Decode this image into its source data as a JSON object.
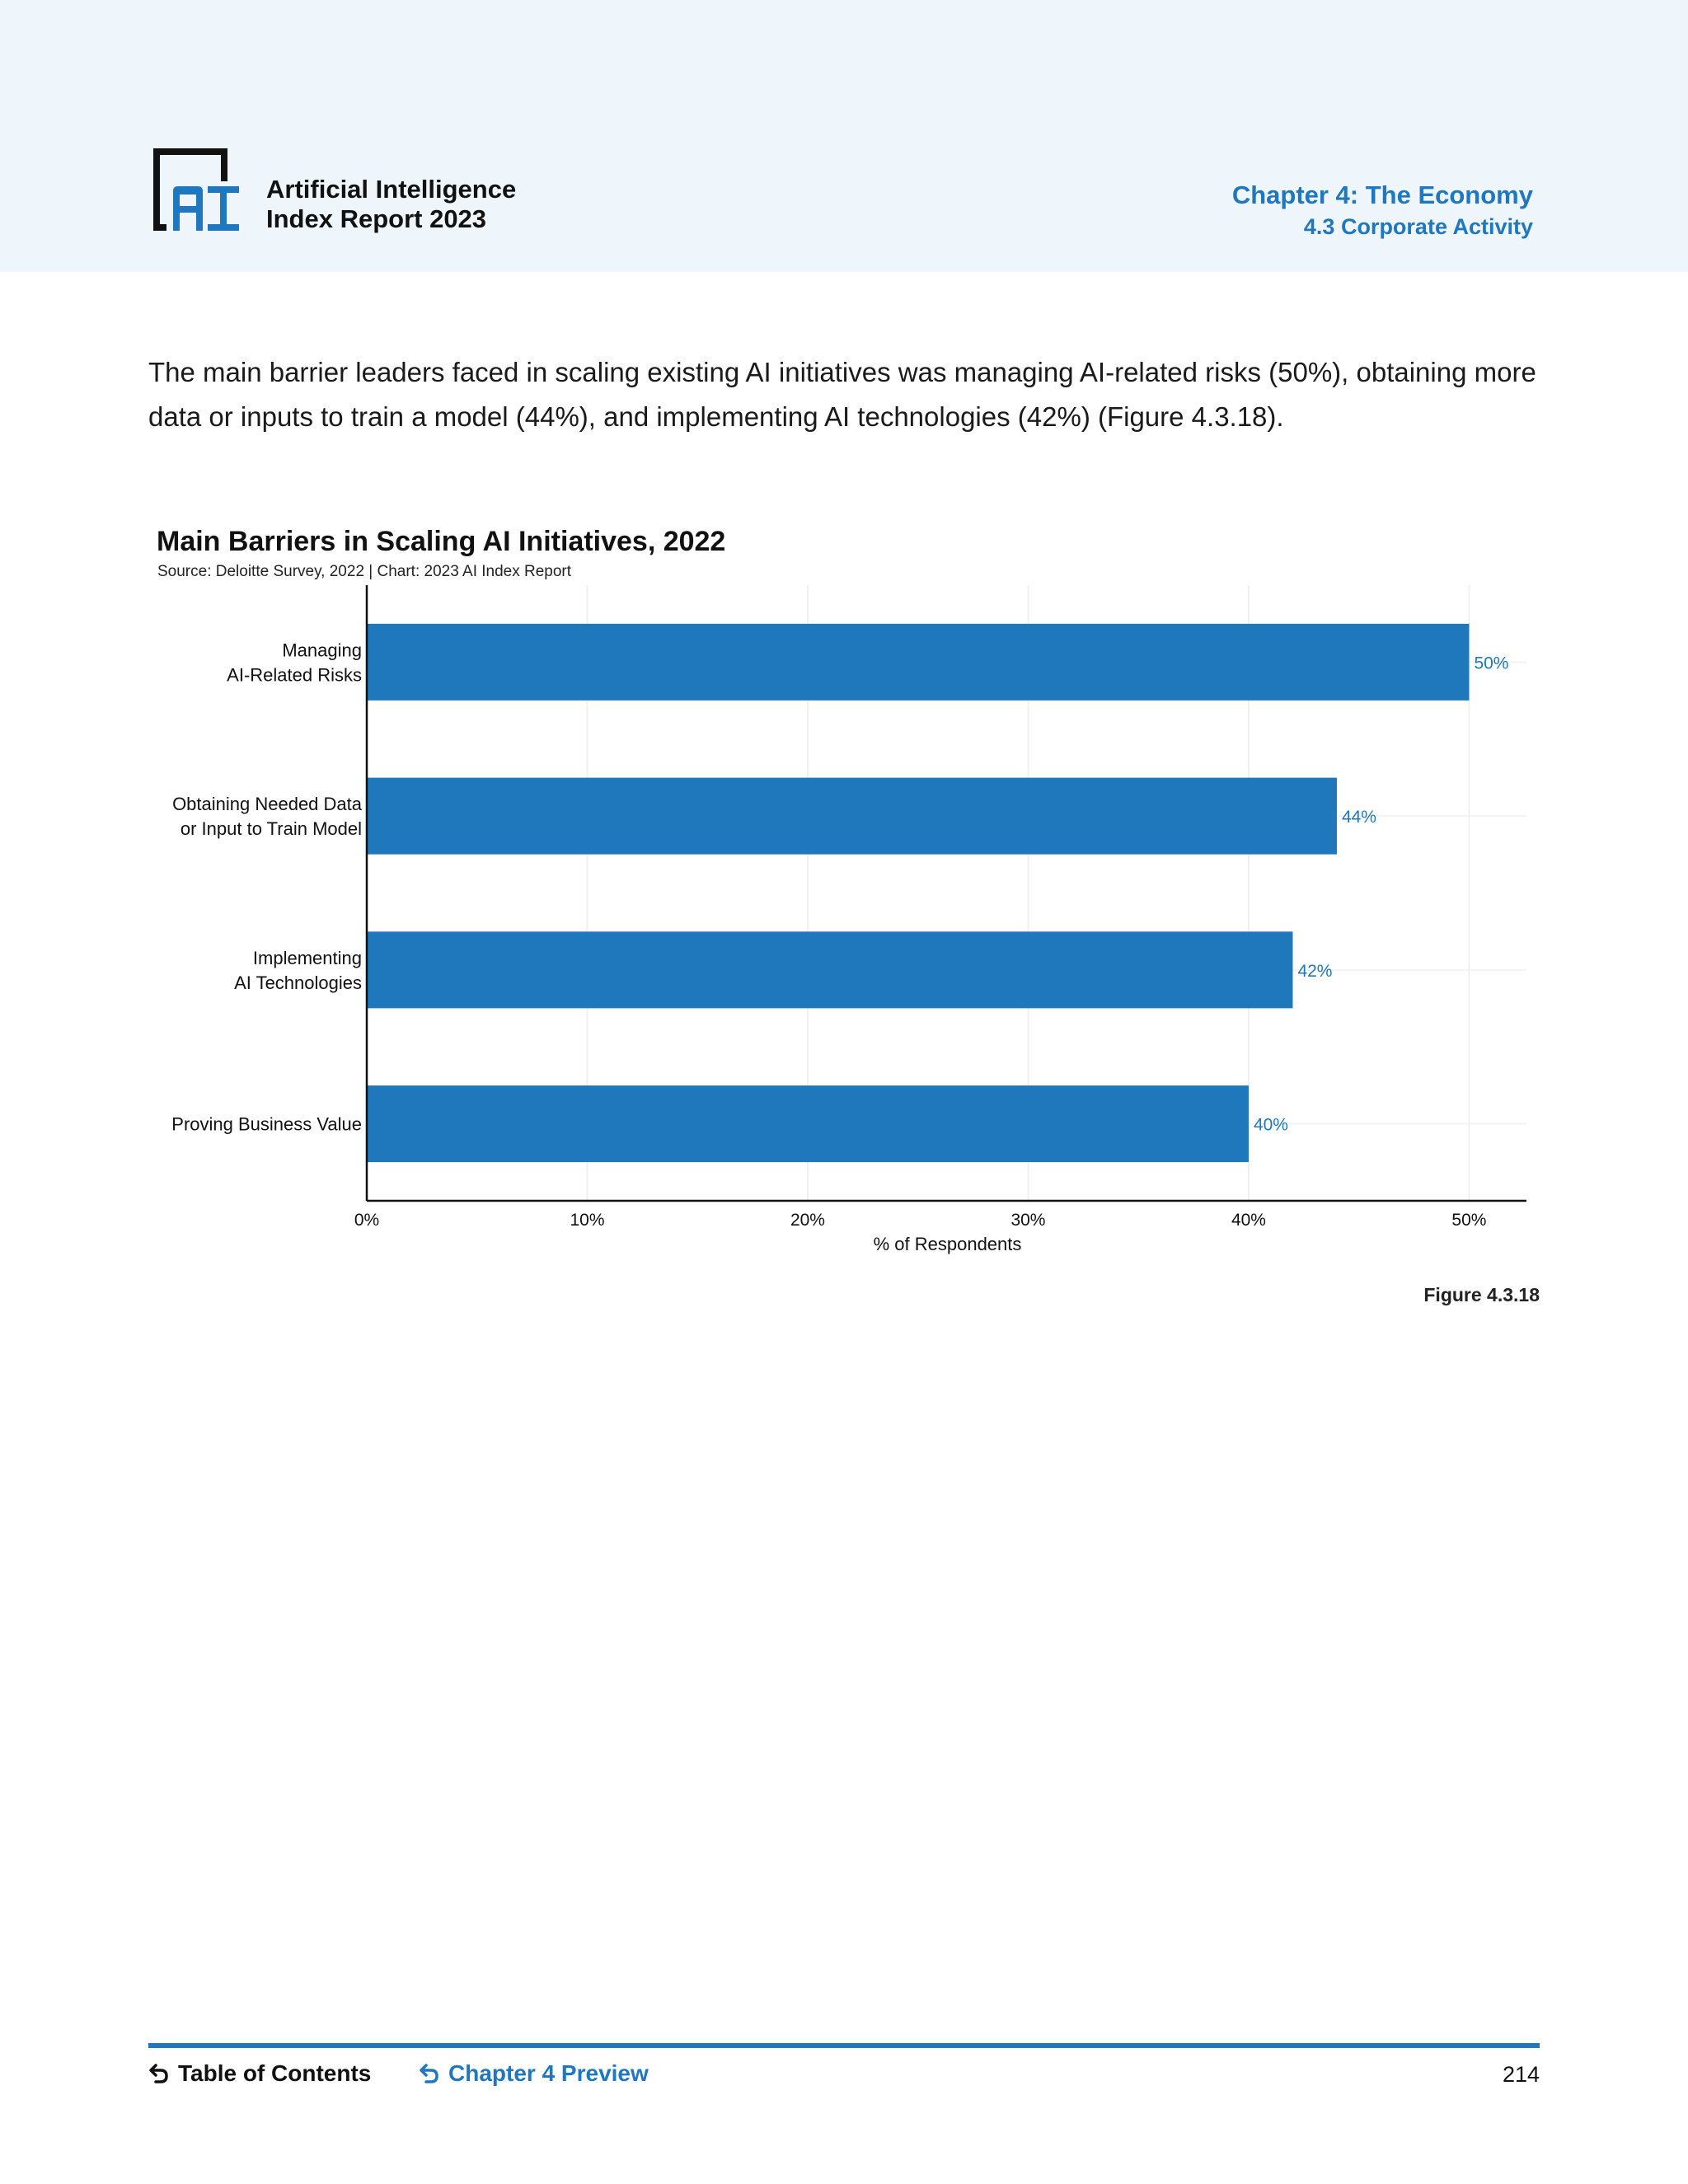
{
  "header": {
    "report_title_line1": "Artificial Intelligence",
    "report_title_line2": "Index Report 2023",
    "chapter_title": "Chapter 4: The Economy",
    "chapter_section": "4.3 Corporate Activity",
    "logo_icon": "ai-index-logo-icon"
  },
  "intro_text": "The main barrier leaders faced in scaling existing AI initiatives was managing AI-related risks (50%), obtaining more data or inputs to train a model (44%), and implementing AI technologies (42%) (Figure 4.3.18).",
  "figure_label": "Figure 4.3.18",
  "chart_data": {
    "type": "bar",
    "orientation": "horizontal",
    "title": "Main Barriers in Scaling AI Initiatives, 2022",
    "subtitle": "Source: Deloitte Survey, 2022 | Chart: 2023 AI Index Report",
    "categories": [
      [
        "Managing",
        "AI-Related Risks"
      ],
      [
        "Obtaining Needed Data",
        "or Input to Train Model"
      ],
      [
        "Implementing",
        "AI Technologies"
      ],
      [
        "Proving Business Value"
      ]
    ],
    "values": [
      50,
      44,
      42,
      40
    ],
    "value_labels": [
      "50%",
      "44%",
      "42%",
      "40%"
    ],
    "xlabel": "% of Respondents",
    "xlim": [
      0,
      52.6
    ],
    "xticks": [
      0,
      10,
      20,
      30,
      40,
      50
    ],
    "xtick_labels": [
      "0%",
      "10%",
      "20%",
      "30%",
      "40%",
      "50%"
    ],
    "grid": true,
    "bar_color": "#1f77bc",
    "label_color": "#1f77bc"
  },
  "footer": {
    "toc_label": "Table of Contents",
    "preview_label": "Chapter 4 Preview",
    "page_number": "214",
    "back_icon": "return-arrow-icon"
  }
}
